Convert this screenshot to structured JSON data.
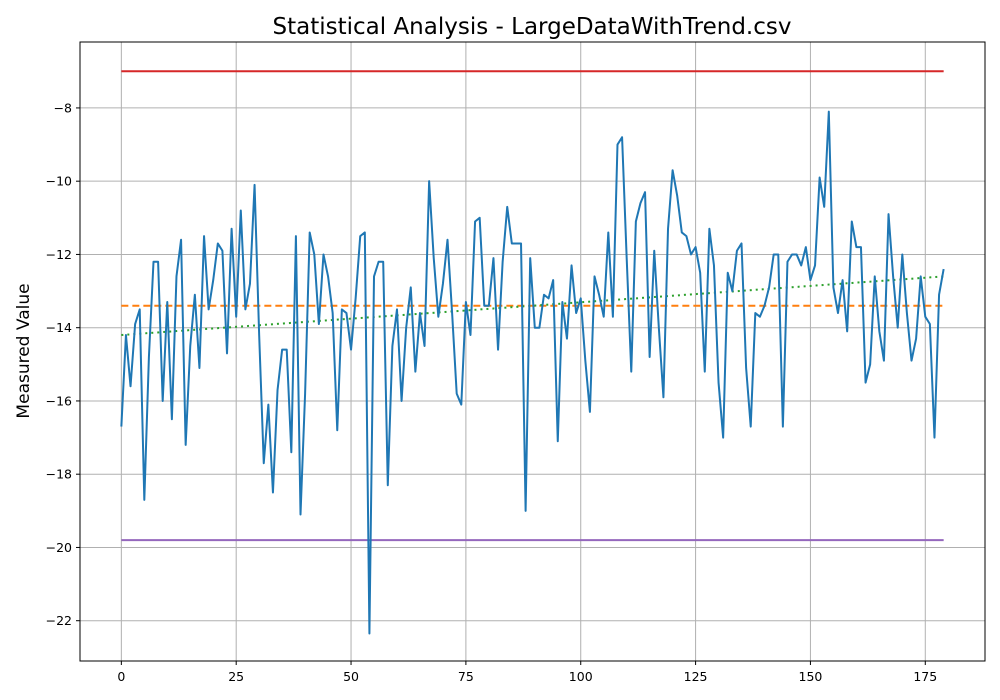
{
  "chart_data": {
    "type": "line",
    "title": "Statistical Analysis - LargeDataWithTrend.csv",
    "xlabel": "",
    "ylabel": "Measured Value",
    "xlim": [
      -9,
      188
    ],
    "ylim": [
      -23.1,
      -6.2
    ],
    "xticks": [
      0,
      25,
      50,
      75,
      100,
      125,
      150,
      175
    ],
    "yticks": [
      -22,
      -20,
      -18,
      -16,
      -14,
      -12,
      -10,
      -8
    ],
    "grid": true,
    "colors": {
      "data": "#1f77b4",
      "mean": "#ff7f0e",
      "trend": "#2ca02c",
      "upper": "#d62728",
      "lower": "#9467bd",
      "grid": "#b0b0b0"
    },
    "series": [
      {
        "style": "solid",
        "x_start": 0,
        "x_step": 1,
        "values": [
          -16.7,
          -14.2,
          -15.6,
          -13.9,
          -13.5,
          -18.7,
          -14.8,
          -12.2,
          -12.2,
          -16.0,
          -13.3,
          -16.5,
          -12.6,
          -11.6,
          -17.2,
          -14.5,
          -13.1,
          -15.1,
          -11.5,
          -13.5,
          -12.7,
          -11.7,
          -11.9,
          -14.7,
          -11.3,
          -13.7,
          -10.8,
          -13.5,
          -12.8,
          -10.1,
          -14.2,
          -17.7,
          -16.1,
          -18.5,
          -15.7,
          -14.6,
          -14.6,
          -17.4,
          -11.5,
          -19.1,
          -15.8,
          -11.4,
          -12.0,
          -13.9,
          -12.0,
          -12.6,
          -13.6,
          -16.8,
          -13.5,
          -13.6,
          -14.6,
          -13.2,
          -11.5,
          -11.4,
          -22.35,
          -12.6,
          -12.2,
          -12.2,
          -18.3,
          -14.5,
          -13.5,
          -16.0,
          -14.0,
          -12.9,
          -15.2,
          -13.6,
          -14.5,
          -10.0,
          -12.1,
          -13.7,
          -12.8,
          -11.6,
          -13.6,
          -15.8,
          -16.1,
          -13.3,
          -14.2,
          -11.1,
          -11.0,
          -13.4,
          -13.4,
          -12.1,
          -14.6,
          -12.2,
          -10.7,
          -11.7,
          -11.7,
          -11.7,
          -19.0,
          -12.1,
          -14.0,
          -14.0,
          -13.1,
          -13.2,
          -12.7,
          -17.1,
          -13.3,
          -14.3,
          -12.3,
          -13.6,
          -13.2,
          -14.9,
          -16.3,
          -12.6,
          -13.1,
          -13.7,
          -11.4,
          -13.7,
          -9.0,
          -8.8,
          -12.1,
          -15.2,
          -11.1,
          -10.6,
          -10.3,
          -14.8,
          -11.9,
          -14.0,
          -15.9,
          -11.3,
          -9.7,
          -10.4,
          -11.4,
          -11.5,
          -12.0,
          -11.8,
          -12.5,
          -15.2,
          -11.3,
          -12.3,
          -15.5,
          -17.0,
          -12.5,
          -13.0,
          -11.9,
          -11.7,
          -15.1,
          -16.7,
          -13.6,
          -13.7,
          -13.4,
          -12.9,
          -12.0,
          -12.0,
          -16.7,
          -12.2,
          -12.0,
          -12.0,
          -12.3,
          -11.8,
          -12.7,
          -12.3,
          -9.9,
          -10.7,
          -8.1,
          -12.9,
          -13.6,
          -12.7,
          -14.1,
          -11.1,
          -11.8,
          -11.8,
          -15.5,
          -15.0,
          -12.6,
          -14.1,
          -14.9,
          -10.9,
          -12.6,
          -14.0,
          -12.0,
          -13.6,
          -14.9,
          -14.3,
          -12.6,
          -13.7,
          -13.9,
          -17.0,
          -13.1,
          -12.4
        ]
      },
      {
        "style": "dashed",
        "x": [
          0,
          179
        ],
        "values": [
          -13.4,
          -13.4
        ]
      },
      {
        "style": "dotted",
        "x": [
          0,
          179
        ],
        "values": [
          -14.2,
          -12.6
        ]
      },
      {
        "style": "solid",
        "x": [
          0,
          179
        ],
        "values": [
          -7.0,
          -7.0
        ]
      },
      {
        "style": "solid",
        "x": [
          0,
          179
        ],
        "values": [
          -19.8,
          -19.8
        ]
      }
    ]
  }
}
